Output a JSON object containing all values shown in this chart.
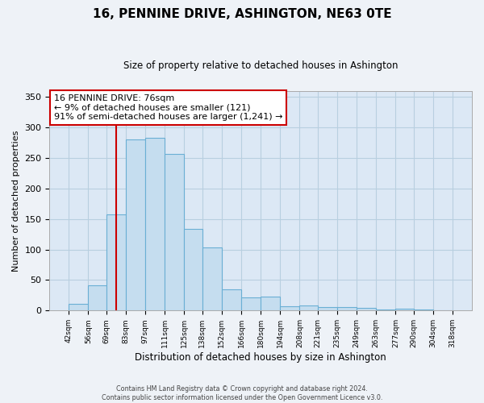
{
  "title": "16, PENNINE DRIVE, ASHINGTON, NE63 0TE",
  "subtitle": "Size of property relative to detached houses in Ashington",
  "xlabel": "Distribution of detached houses by size in Ashington",
  "ylabel": "Number of detached properties",
  "bar_edges": [
    42,
    56,
    69,
    83,
    97,
    111,
    125,
    138,
    152,
    166,
    180,
    194,
    208,
    221,
    235,
    249,
    263,
    277,
    290,
    304,
    318
  ],
  "bar_heights": [
    11,
    41,
    157,
    280,
    283,
    257,
    134,
    103,
    35,
    22,
    23,
    7,
    8,
    6,
    6,
    5,
    2,
    3,
    2,
    1
  ],
  "bar_color": "#c5ddef",
  "bar_edge_color": "#6aafd4",
  "property_line_x": 76,
  "property_line_color": "#cc0000",
  "ylim": [
    0,
    360
  ],
  "yticks": [
    0,
    50,
    100,
    150,
    200,
    250,
    300,
    350
  ],
  "annotation_line1": "16 PENNINE DRIVE: 76sqm",
  "annotation_line2": "← 9% of detached houses are smaller (121)",
  "annotation_line3": "91% of semi-detached houses are larger (1,241) →",
  "footer_text": "Contains HM Land Registry data © Crown copyright and database right 2024.\nContains public sector information licensed under the Open Government Licence v3.0.",
  "background_color": "#eef2f7",
  "plot_background_color": "#dce8f5",
  "grid_color": "#b8cfe0"
}
